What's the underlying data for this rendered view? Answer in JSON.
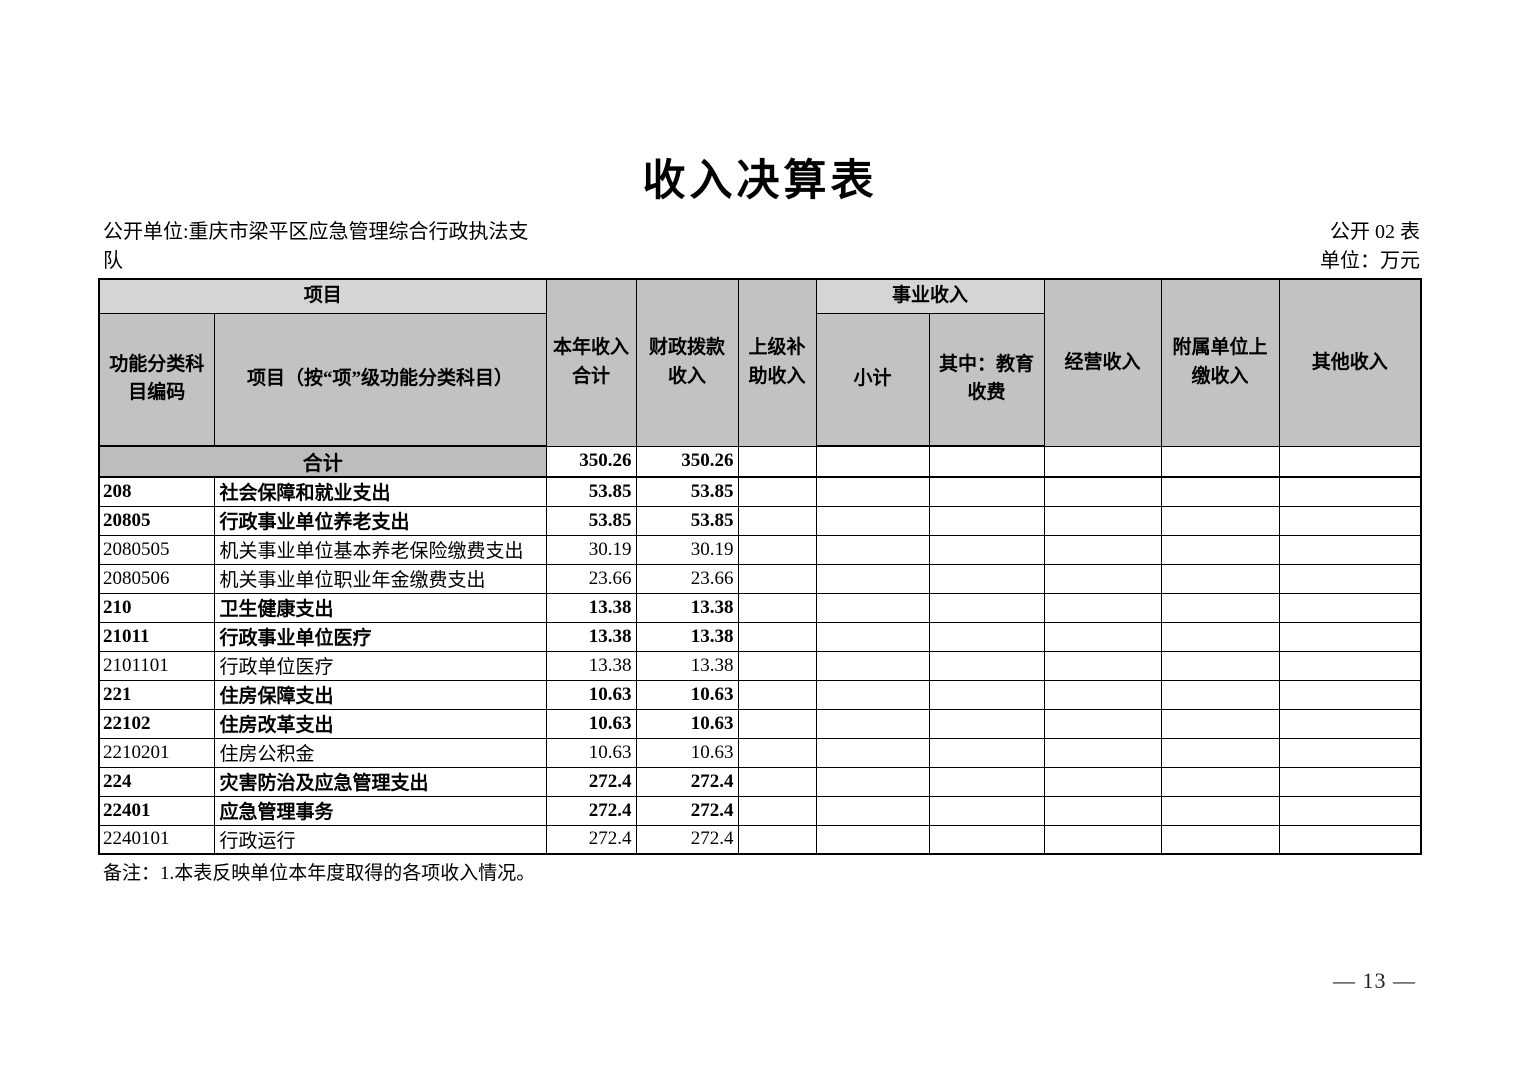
{
  "page": {
    "title": "收入决算表",
    "unit_label": "公开单位:重庆市梁平区应急管理综合行政执法支队",
    "table_code": "公开 02 表",
    "unit_of_measure": "单位：万元",
    "note": "备注：1.本表反映单位本年度取得的各项收入情况。",
    "page_number": "— 13 —"
  },
  "colors": {
    "header_bg": "#c2c2c2",
    "band_bg": "#d5d5d5",
    "total_bg": "#bdbdbd"
  },
  "table": {
    "header": {
      "project_group": "项目",
      "code": "功能分类科目编码",
      "project": "项目（按“项”级功能分类科目）",
      "total": "本年收入合计",
      "fiscal": "财政拨款收入",
      "superior": "上级补助收入",
      "business_group": "事业收入",
      "subtotal": "小计",
      "education": "其中：教育收费",
      "operating": "经营收入",
      "affiliated": "附属单位上缴收入",
      "other": "其他收入"
    },
    "total_row": {
      "label": "合计",
      "total": "350.26",
      "fiscal": "350.26"
    },
    "rows": [
      {
        "code": "208",
        "name": "社会保障和就业支出",
        "total": "53.85",
        "fiscal": "53.85",
        "bold": true
      },
      {
        "code": "20805",
        "name": "行政事业单位养老支出",
        "total": "53.85",
        "fiscal": "53.85",
        "bold": true
      },
      {
        "code": "2080505",
        "name": "机关事业单位基本养老保险缴费支出",
        "total": "30.19",
        "fiscal": "30.19",
        "bold": false
      },
      {
        "code": "2080506",
        "name": "机关事业单位职业年金缴费支出",
        "total": "23.66",
        "fiscal": "23.66",
        "bold": false
      },
      {
        "code": "210",
        "name": "卫生健康支出",
        "total": "13.38",
        "fiscal": "13.38",
        "bold": true
      },
      {
        "code": "21011",
        "name": "行政事业单位医疗",
        "total": "13.38",
        "fiscal": "13.38",
        "bold": true
      },
      {
        "code": "2101101",
        "name": "行政单位医疗",
        "total": "13.38",
        "fiscal": "13.38",
        "bold": false
      },
      {
        "code": "221",
        "name": "住房保障支出",
        "total": "10.63",
        "fiscal": "10.63",
        "bold": true
      },
      {
        "code": "22102",
        "name": "住房改革支出",
        "total": "10.63",
        "fiscal": "10.63",
        "bold": true
      },
      {
        "code": "2210201",
        "name": "住房公积金",
        "total": "10.63",
        "fiscal": "10.63",
        "bold": false
      },
      {
        "code": "224",
        "name": "灾害防治及应急管理支出",
        "total": "272.4",
        "fiscal": "272.4",
        "bold": true
      },
      {
        "code": "22401",
        "name": "应急管理事务",
        "total": "272.4",
        "fiscal": "272.4",
        "bold": true
      },
      {
        "code": "2240101",
        "name": "行政运行",
        "total": "272.4",
        "fiscal": "272.4",
        "bold": false
      }
    ]
  }
}
